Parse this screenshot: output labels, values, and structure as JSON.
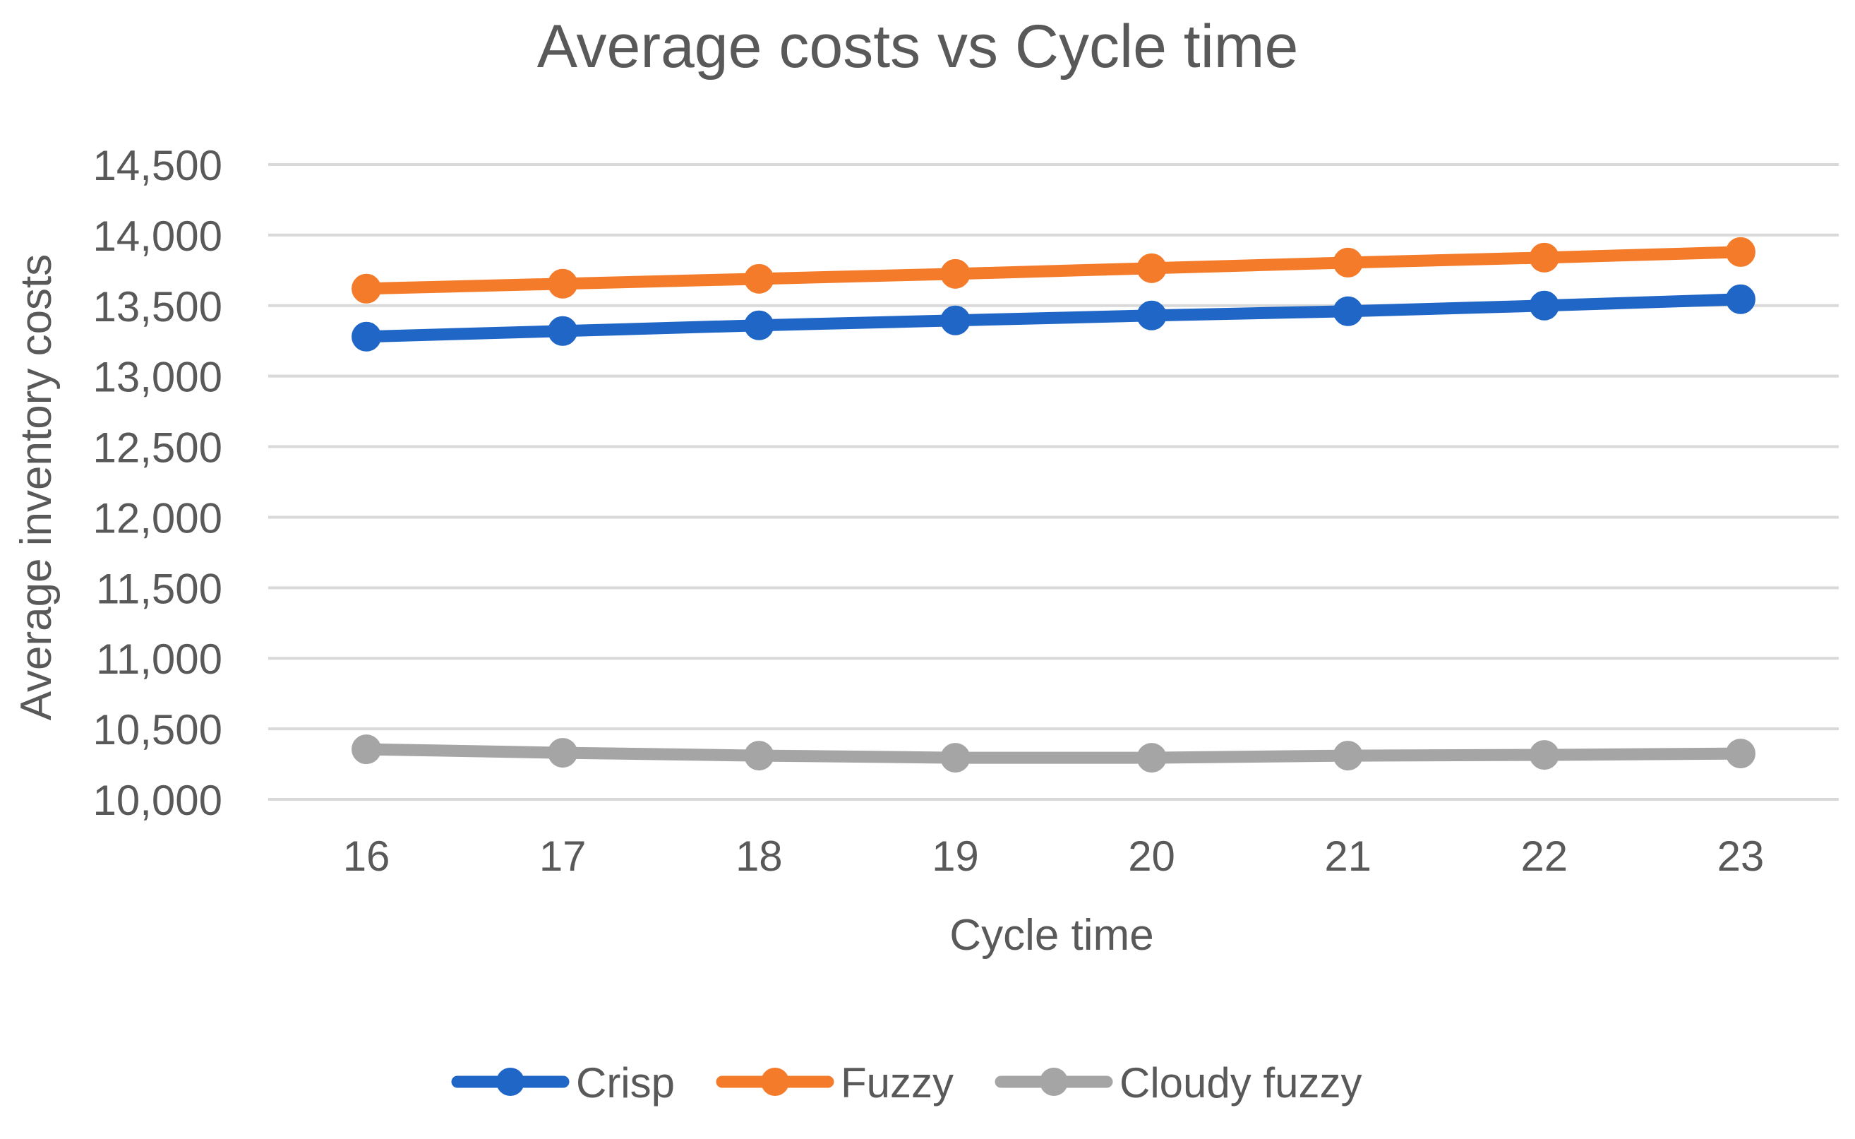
{
  "chart_data": {
    "type": "line",
    "title": "Average costs vs Cycle time",
    "xlabel": "Cycle time",
    "ylabel": "Average inventory costs",
    "categories": [
      "16",
      "17",
      "18",
      "19",
      "20",
      "21",
      "22",
      "23"
    ],
    "ylim": [
      10000,
      14500
    ],
    "yticks": [
      10000,
      10500,
      11000,
      11500,
      12000,
      12500,
      13000,
      13500,
      14000,
      14500
    ],
    "ytick_labels": [
      "10,000",
      "10,500",
      "11,000",
      "11,500",
      "12,000",
      "12,500",
      "13,000",
      "13,500",
      "14,000",
      "14,500"
    ],
    "grid": true,
    "legend_position": "bottom",
    "series": [
      {
        "name": "Crisp",
        "color": "#1f66c7",
        "values": [
          13280,
          13320,
          13360,
          13395,
          13430,
          13460,
          13500,
          13545
        ]
      },
      {
        "name": "Fuzzy",
        "color": "#f47b2a",
        "values": [
          13620,
          13655,
          13690,
          13725,
          13765,
          13805,
          13840,
          13880
        ]
      },
      {
        "name": "Cloudy fuzzy",
        "color": "#a5a5a5",
        "values": [
          10355,
          10330,
          10310,
          10295,
          10295,
          10310,
          10315,
          10325
        ]
      }
    ]
  }
}
